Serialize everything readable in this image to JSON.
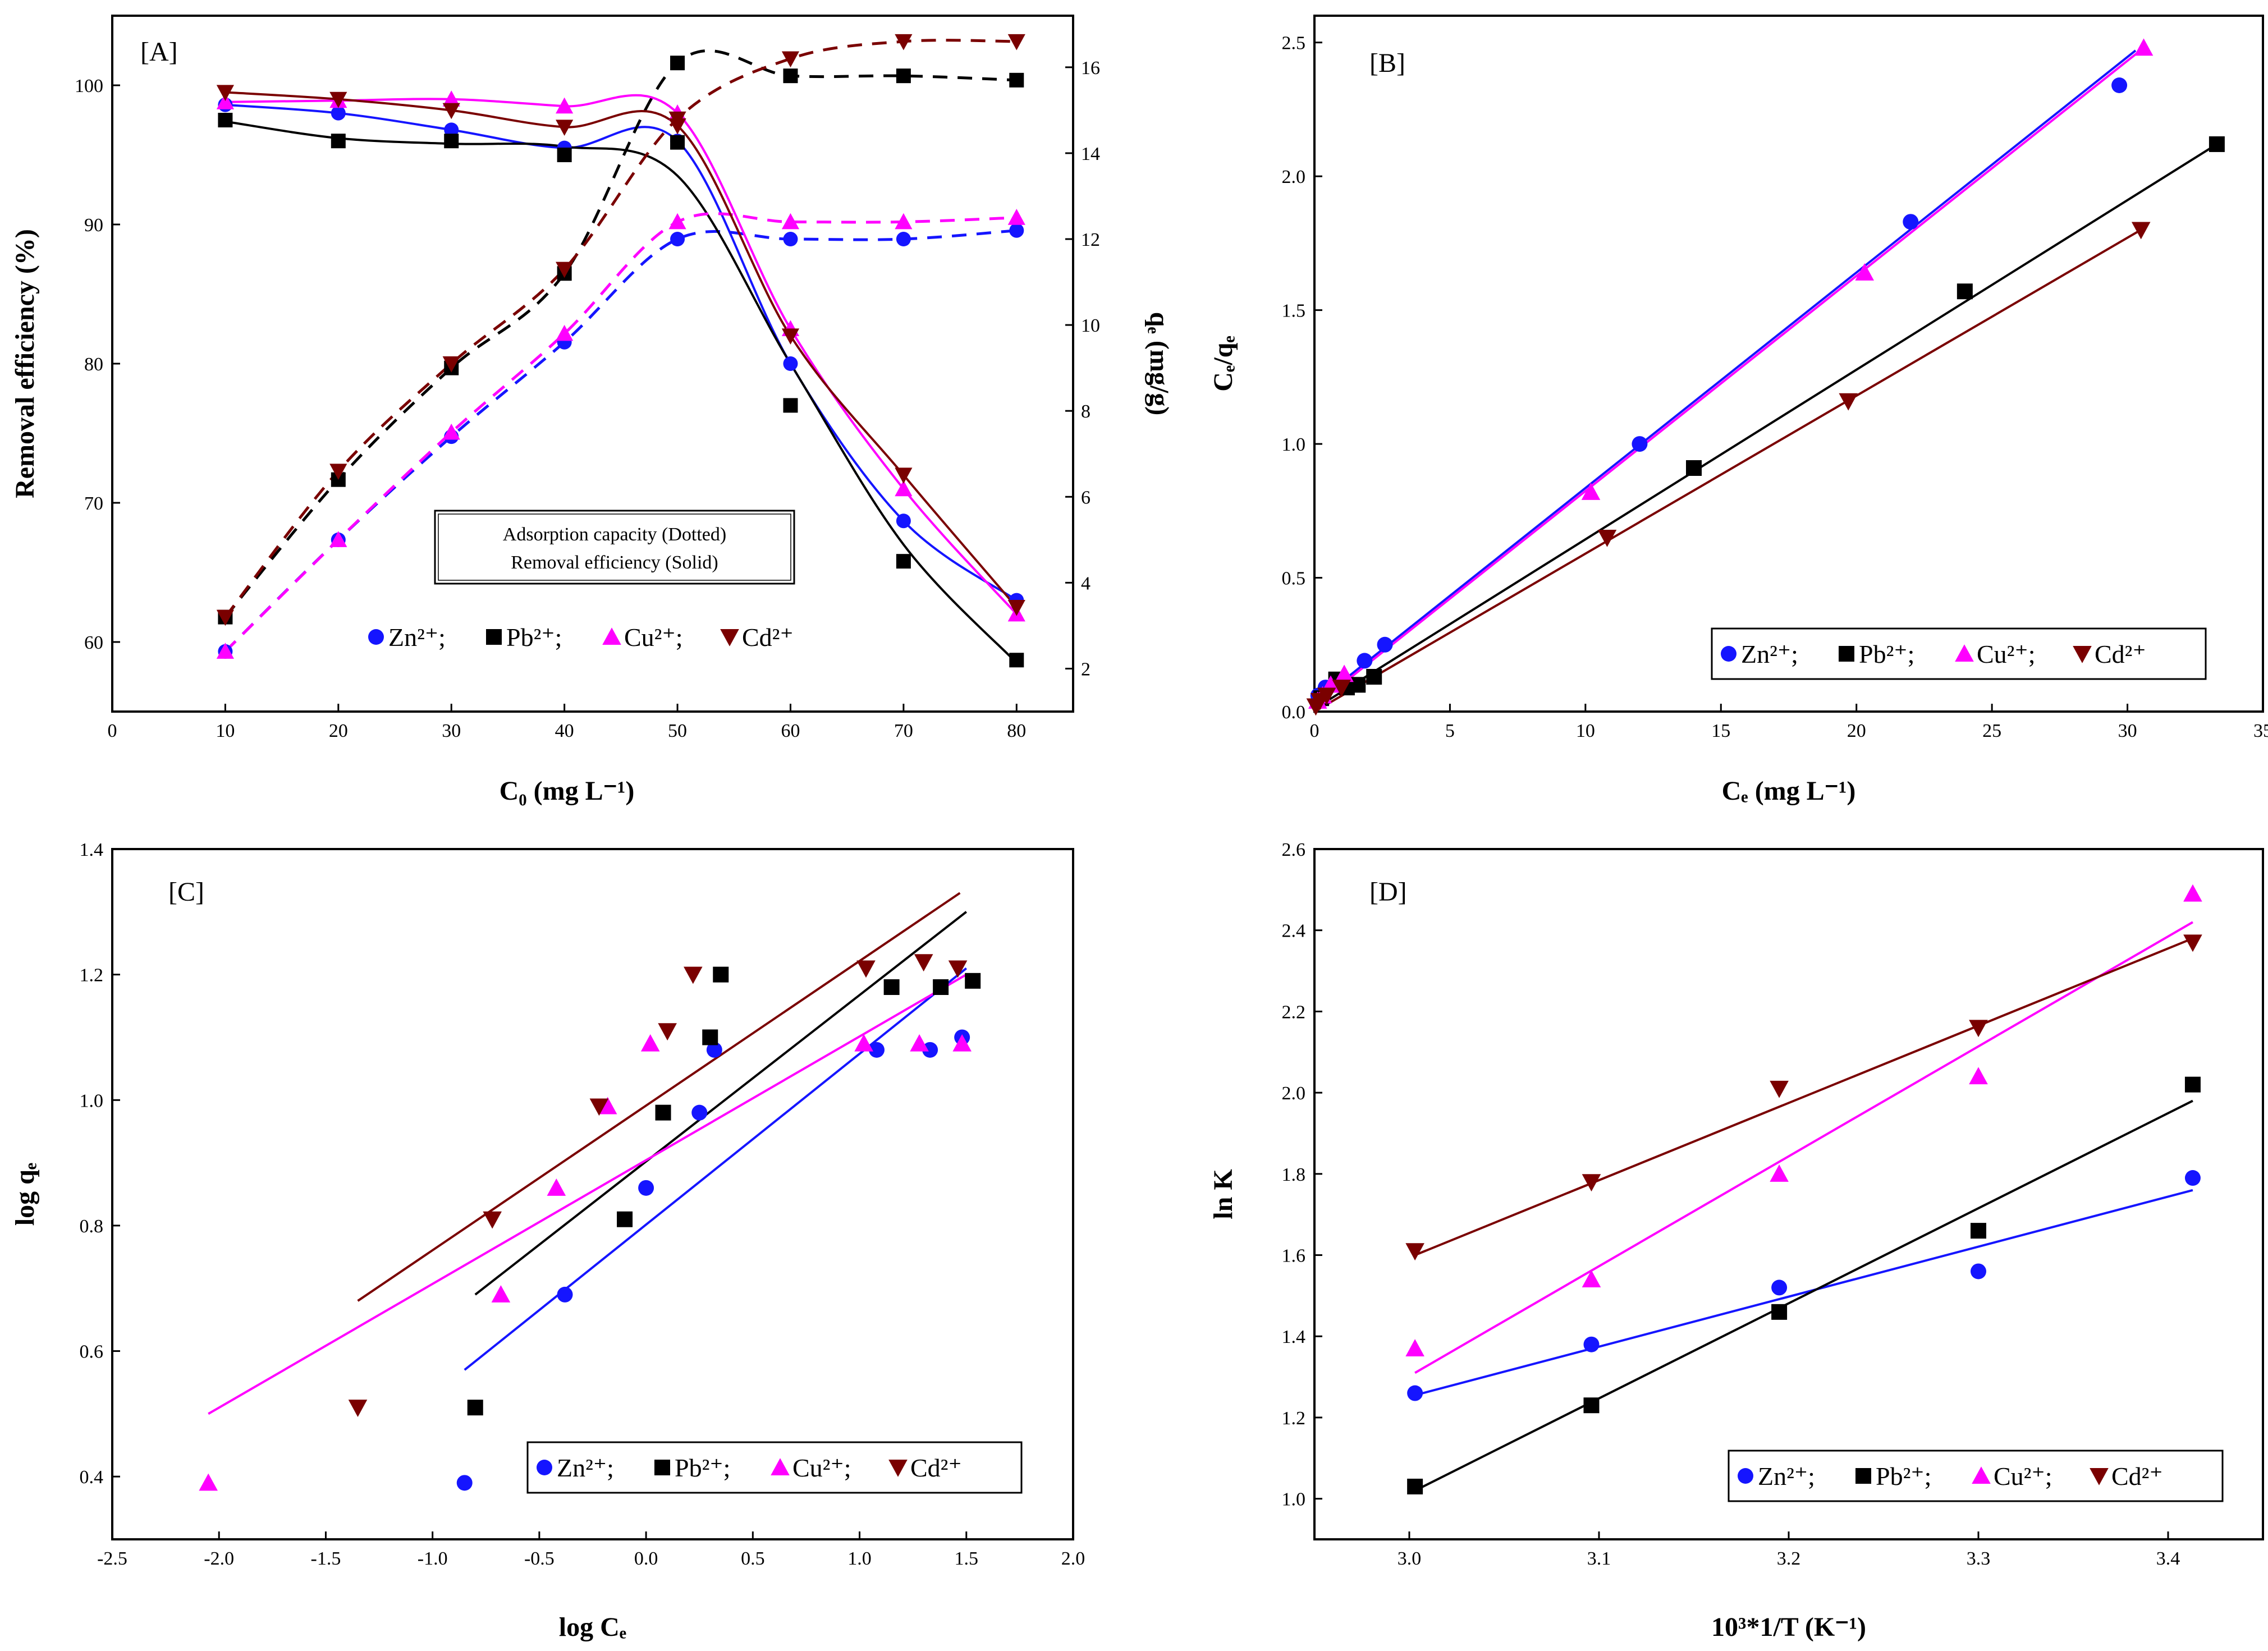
{
  "colors": {
    "Zn": "#1515ff",
    "Pb": "#000000",
    "Cu": "#ff00ff",
    "Cd": "#7a0000"
  },
  "chart_data": [
    {
      "id": "A",
      "type": "line",
      "panel_label": "[A]",
      "xlabel": "C₀ (mg L⁻¹)",
      "ylabel": "Removal efficiency (%)",
      "ylabel_right": "qₑ (mg/g)",
      "xlim": [
        0,
        85
      ],
      "ylim": [
        55,
        105
      ],
      "ylim_right": [
        1,
        17.2
      ],
      "xticks": [
        0,
        10,
        20,
        30,
        40,
        50,
        60,
        70,
        80
      ],
      "yticks": [
        60,
        70,
        80,
        90,
        100
      ],
      "yticks_right": [
        2,
        4,
        6,
        8,
        10,
        12,
        14,
        16
      ],
      "x": [
        10,
        20,
        30,
        40,
        50,
        60,
        70,
        80
      ],
      "note": [
        "Adsorption capacity (Dotted)",
        "Removal efficiency (Solid)"
      ],
      "series": [
        {
          "name": "Zn²⁺",
          "key": "Zn",
          "marker": "circle",
          "removal": [
            98.6,
            98.0,
            96.8,
            95.5,
            96.0,
            80.0,
            68.7,
            63.0
          ],
          "capacity": [
            2.4,
            5.0,
            7.4,
            9.6,
            12.0,
            12.0,
            12.0,
            12.2
          ]
        },
        {
          "name": "Pb²⁺",
          "key": "Pb",
          "marker": "square",
          "removal": [
            97.5,
            96.0,
            96.0,
            95.0,
            95.9,
            77.0,
            65.8,
            58.7
          ],
          "capacity": [
            3.2,
            6.4,
            9.0,
            11.2,
            16.1,
            15.8,
            15.8,
            15.7
          ],
          "fit_removal": [
            97.4,
            96.2,
            95.8,
            95.6,
            93.5,
            80.0,
            67.0,
            58.5
          ]
        },
        {
          "name": "Cu²⁺",
          "key": "Cu",
          "marker": "triangle",
          "removal": [
            98.8,
            98.9,
            99.0,
            98.5,
            98.0,
            82.5,
            71.0,
            62.0
          ],
          "capacity": [
            2.4,
            5.0,
            7.5,
            9.8,
            12.4,
            12.4,
            12.4,
            12.5
          ]
        },
        {
          "name": "Cd²⁺",
          "key": "Cd",
          "marker": "triangle-down",
          "removal": [
            99.5,
            99.0,
            98.2,
            97.0,
            97.1,
            82.0,
            72.0,
            62.5
          ],
          "capacity": [
            3.2,
            6.6,
            9.1,
            11.3,
            14.8,
            16.2,
            16.6,
            16.6
          ]
        }
      ]
    },
    {
      "id": "B",
      "type": "scatter",
      "panel_label": "[B]",
      "xlabel": "Cₑ (mg L⁻¹)",
      "ylabel": "Cₑ/qₑ",
      "xlim": [
        0,
        35
      ],
      "ylim": [
        0,
        2.6
      ],
      "xticks": [
        0,
        5,
        10,
        15,
        20,
        25,
        30,
        35
      ],
      "yticks": [
        0.0,
        0.5,
        1.0,
        1.5,
        2.0,
        2.5
      ],
      "series": [
        {
          "name": "Zn²⁺",
          "key": "Zn",
          "marker": "circle",
          "x": [
            0.14,
            0.41,
            1.0,
            1.85,
            2.6,
            12.0,
            22.0,
            29.7
          ],
          "y": [
            0.06,
            0.09,
            0.12,
            0.19,
            0.25,
            1.0,
            1.83,
            2.34
          ],
          "fit": [
            [
              0,
              0.03
            ],
            [
              30.3,
              2.47
            ]
          ]
        },
        {
          "name": "Pb²⁺",
          "key": "Pb",
          "marker": "square",
          "x": [
            0.25,
            0.8,
            1.2,
            1.6,
            2.2,
            14.0,
            24.0,
            33.3
          ],
          "y": [
            0.05,
            0.12,
            0.09,
            0.1,
            0.13,
            0.91,
            1.57,
            2.12
          ],
          "fit": [
            [
              0,
              0.01
            ],
            [
              33.3,
              2.12
            ]
          ]
        },
        {
          "name": "Cu²⁺",
          "key": "Cu",
          "marker": "triangle",
          "x": [
            0.12,
            0.3,
            0.6,
            1.1,
            10.2,
            20.3,
            30.6
          ],
          "y": [
            0.04,
            0.06,
            0.1,
            0.14,
            0.82,
            1.64,
            2.48
          ],
          "fit": [
            [
              0,
              0.02
            ],
            [
              30.6,
              2.48
            ]
          ]
        },
        {
          "name": "Cd²⁺",
          "key": "Cd",
          "marker": "triangle-down",
          "x": [
            0.05,
            0.2,
            0.45,
            1.0,
            10.8,
            19.7,
            30.5
          ],
          "y": [
            0.02,
            0.04,
            0.06,
            0.09,
            0.65,
            1.16,
            1.8
          ],
          "fit": [
            [
              0,
              0.0
            ],
            [
              30.5,
              1.8
            ]
          ]
        }
      ]
    },
    {
      "id": "C",
      "type": "scatter",
      "panel_label": "[C]",
      "xlabel": "log Cₑ",
      "ylabel": "log qₑ",
      "xlim": [
        -2.5,
        2.0
      ],
      "ylim": [
        0.3,
        1.4
      ],
      "xticks": [
        -2.5,
        -2.0,
        -1.5,
        -1.0,
        -0.5,
        0.0,
        0.5,
        1.0,
        1.5,
        2.0
      ],
      "yticks": [
        0.4,
        0.6,
        0.8,
        1.0,
        1.2,
        1.4
      ],
      "series": [
        {
          "name": "Zn²⁺",
          "key": "Zn",
          "marker": "circle",
          "x": [
            -0.85,
            -0.38,
            0.0,
            0.25,
            0.32,
            1.08,
            1.33,
            1.48
          ],
          "y": [
            0.39,
            0.69,
            0.86,
            0.98,
            1.08,
            1.08,
            1.08,
            1.1
          ],
          "fit": [
            [
              -0.85,
              0.57
            ],
            [
              1.5,
              1.21
            ]
          ]
        },
        {
          "name": "Pb²⁺",
          "key": "Pb",
          "marker": "square",
          "x": [
            -0.8,
            -0.1,
            0.08,
            0.3,
            0.35,
            1.15,
            1.38,
            1.53
          ],
          "y": [
            0.51,
            0.81,
            0.98,
            1.1,
            1.2,
            1.18,
            1.18,
            1.19
          ],
          "fit": [
            [
              -0.8,
              0.69
            ],
            [
              1.5,
              1.3
            ]
          ]
        },
        {
          "name": "Cu²⁺",
          "key": "Cu",
          "marker": "triangle",
          "x": [
            -2.05,
            -0.68,
            -0.42,
            -0.18,
            0.02,
            1.02,
            1.28,
            1.48
          ],
          "y": [
            0.39,
            0.69,
            0.86,
            0.99,
            1.09,
            1.09,
            1.09,
            1.09
          ],
          "fit": [
            [
              -2.05,
              0.5
            ],
            [
              1.5,
              1.2
            ]
          ]
        },
        {
          "name": "Cd²⁺",
          "key": "Cd",
          "marker": "triangle-down",
          "x": [
            -1.35,
            -0.72,
            -0.22,
            0.1,
            0.22,
            1.03,
            1.3,
            1.46
          ],
          "y": [
            0.51,
            0.81,
            0.99,
            1.11,
            1.2,
            1.21,
            1.22,
            1.21
          ],
          "fit": [
            [
              -1.35,
              0.68
            ],
            [
              1.47,
              1.33
            ]
          ]
        }
      ]
    },
    {
      "id": "D",
      "type": "scatter",
      "panel_label": "[D]",
      "xlabel": "10³*1/T (K⁻¹)",
      "ylabel": "ln K",
      "xlim": [
        2.95,
        3.45
      ],
      "ylim": [
        0.9,
        2.6
      ],
      "xticks": [
        3.0,
        3.1,
        3.2,
        3.3,
        3.4
      ],
      "yticks": [
        1.0,
        1.2,
        1.4,
        1.6,
        1.8,
        2.0,
        2.2,
        2.4,
        2.6
      ],
      "series": [
        {
          "name": "Zn²⁺",
          "key": "Zn",
          "marker": "circle",
          "x": [
            3.003,
            3.096,
            3.195,
            3.3,
            3.413
          ],
          "y": [
            1.26,
            1.38,
            1.52,
            1.56,
            1.79
          ],
          "fit": [
            [
              3.003,
              1.255
            ],
            [
              3.413,
              1.76
            ]
          ]
        },
        {
          "name": "Pb²⁺",
          "key": "Pb",
          "marker": "square",
          "x": [
            3.003,
            3.096,
            3.195,
            3.3,
            3.413
          ],
          "y": [
            1.03,
            1.23,
            1.46,
            1.66,
            2.02
          ],
          "fit": [
            [
              3.003,
              1.02
            ],
            [
              3.413,
              1.98
            ]
          ]
        },
        {
          "name": "Cu²⁺",
          "key": "Cu",
          "marker": "triangle",
          "x": [
            3.003,
            3.096,
            3.195,
            3.3,
            3.413
          ],
          "y": [
            1.37,
            1.54,
            1.8,
            2.04,
            2.49
          ],
          "fit": [
            [
              3.003,
              1.31
            ],
            [
              3.413,
              2.42
            ]
          ]
        },
        {
          "name": "Cd²⁺",
          "key": "Cd",
          "marker": "triangle-down",
          "x": [
            3.003,
            3.096,
            3.195,
            3.3,
            3.413
          ],
          "y": [
            1.61,
            1.78,
            2.01,
            2.16,
            2.37
          ],
          "fit": [
            [
              3.003,
              1.6
            ],
            [
              3.413,
              2.38
            ]
          ]
        }
      ]
    }
  ]
}
